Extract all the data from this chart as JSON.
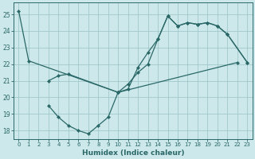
{
  "xlabel": "Humidex (Indice chaleur)",
  "bg_color": "#cde8ea",
  "grid_color": "#a0c8cc",
  "line_color": "#2a6868",
  "xlim": [
    -0.5,
    23.5
  ],
  "ylim": [
    17.5,
    25.7
  ],
  "yticks": [
    18,
    19,
    20,
    21,
    22,
    23,
    24,
    25
  ],
  "xticks": [
    0,
    1,
    2,
    3,
    4,
    5,
    6,
    7,
    8,
    9,
    10,
    11,
    12,
    13,
    14,
    15,
    16,
    17,
    18,
    19,
    20,
    21,
    22,
    23
  ],
  "series": [
    {
      "x": [
        0,
        1,
        10,
        11,
        12,
        13,
        14,
        15,
        16,
        17,
        18,
        19,
        20,
        21,
        23
      ],
      "y": [
        25.2,
        22.2,
        20.3,
        20.5,
        21.8,
        22.7,
        23.5,
        24.9,
        24.3,
        24.5,
        24.4,
        24.5,
        24.3,
        23.8,
        22.1
      ]
    },
    {
      "x": [
        3,
        4,
        5,
        10,
        11,
        12,
        13,
        14,
        15,
        16,
        17,
        18,
        19,
        20,
        21,
        23
      ],
      "y": [
        21.0,
        21.3,
        21.4,
        20.3,
        20.8,
        21.5,
        22.0,
        23.5,
        24.9,
        24.3,
        24.5,
        24.4,
        24.5,
        24.3,
        23.8,
        22.1
      ]
    },
    {
      "x": [
        3,
        4,
        5,
        6,
        7,
        8,
        9,
        10,
        22
      ],
      "y": [
        19.5,
        18.8,
        18.3,
        18.0,
        17.8,
        18.3,
        18.8,
        20.3,
        22.1
      ]
    }
  ]
}
